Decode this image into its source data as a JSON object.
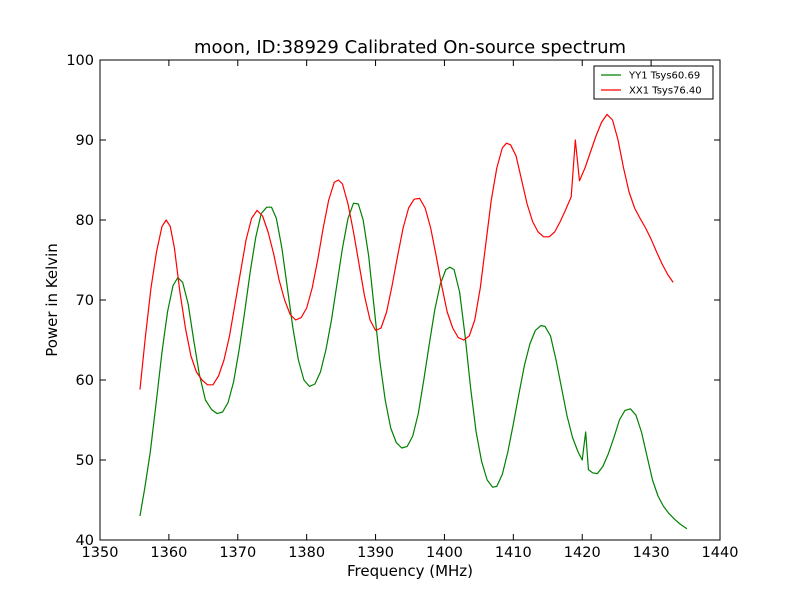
{
  "chart_data": {
    "type": "line",
    "title": "moon, ID:38929 Calibrated On-source spectrum",
    "xlabel": "Frequency (MHz)",
    "ylabel": "Power in Kelvin",
    "xlim": [
      1350,
      1440
    ],
    "ylim": [
      40,
      100
    ],
    "xticks": [
      1350,
      1360,
      1370,
      1380,
      1390,
      1400,
      1410,
      1420,
      1430,
      1440
    ],
    "yticks": [
      40,
      50,
      60,
      70,
      80,
      90,
      100
    ],
    "xtick_labels": [
      "1350",
      "1360",
      "1370",
      "1380",
      "1390",
      "1400",
      "1410",
      "1420",
      "1430",
      "1440"
    ],
    "ytick_labels": [
      "40",
      "50",
      "60",
      "70",
      "80",
      "90",
      "100"
    ],
    "grid": false,
    "legend_position": "top-right",
    "series": [
      {
        "name": "YY1 Tsys60.69",
        "color": "#008000",
        "points": [
          [
            1355.8,
            43.0
          ],
          [
            1356.5,
            46.5
          ],
          [
            1357.3,
            51.0
          ],
          [
            1358.2,
            57.5
          ],
          [
            1359.0,
            63.5
          ],
          [
            1359.8,
            68.5
          ],
          [
            1360.6,
            71.8
          ],
          [
            1361.3,
            72.8
          ],
          [
            1362.0,
            72.2
          ],
          [
            1362.8,
            69.5
          ],
          [
            1363.6,
            65.0
          ],
          [
            1364.4,
            60.8
          ],
          [
            1365.3,
            57.5
          ],
          [
            1366.2,
            56.3
          ],
          [
            1367.0,
            55.8
          ],
          [
            1367.8,
            56.0
          ],
          [
            1368.6,
            57.2
          ],
          [
            1369.4,
            59.8
          ],
          [
            1370.2,
            63.8
          ],
          [
            1371.0,
            68.5
          ],
          [
            1371.8,
            73.5
          ],
          [
            1372.6,
            77.8
          ],
          [
            1373.4,
            80.8
          ],
          [
            1374.2,
            81.6
          ],
          [
            1374.9,
            81.6
          ],
          [
            1375.6,
            80.2
          ],
          [
            1376.4,
            76.5
          ],
          [
            1377.2,
            71.5
          ],
          [
            1378.0,
            66.5
          ],
          [
            1378.8,
            62.5
          ],
          [
            1379.6,
            60.0
          ],
          [
            1380.4,
            59.2
          ],
          [
            1381.2,
            59.5
          ],
          [
            1382.0,
            61.0
          ],
          [
            1382.8,
            63.8
          ],
          [
            1383.6,
            67.5
          ],
          [
            1384.4,
            72.0
          ],
          [
            1385.2,
            76.5
          ],
          [
            1386.0,
            80.2
          ],
          [
            1386.8,
            82.1
          ],
          [
            1387.5,
            82.0
          ],
          [
            1388.2,
            80.0
          ],
          [
            1389.0,
            75.5
          ],
          [
            1389.8,
            69.0
          ],
          [
            1390.6,
            62.5
          ],
          [
            1391.4,
            57.5
          ],
          [
            1392.2,
            54.0
          ],
          [
            1393.0,
            52.2
          ],
          [
            1393.8,
            51.5
          ],
          [
            1394.6,
            51.7
          ],
          [
            1395.4,
            53.0
          ],
          [
            1396.2,
            55.8
          ],
          [
            1397.0,
            60.0
          ],
          [
            1397.8,
            64.5
          ],
          [
            1398.6,
            68.8
          ],
          [
            1399.4,
            72.0
          ],
          [
            1400.2,
            73.8
          ],
          [
            1400.8,
            74.1
          ],
          [
            1401.4,
            73.8
          ],
          [
            1402.2,
            71.0
          ],
          [
            1403.0,
            65.5
          ],
          [
            1403.8,
            59.0
          ],
          [
            1404.6,
            53.5
          ],
          [
            1405.4,
            49.8
          ],
          [
            1406.2,
            47.5
          ],
          [
            1407.0,
            46.6
          ],
          [
            1407.6,
            46.7
          ],
          [
            1408.4,
            48.2
          ],
          [
            1409.2,
            51.0
          ],
          [
            1410.0,
            54.5
          ],
          [
            1410.8,
            58.2
          ],
          [
            1411.6,
            61.8
          ],
          [
            1412.4,
            64.5
          ],
          [
            1413.2,
            66.2
          ],
          [
            1414.0,
            66.8
          ],
          [
            1414.6,
            66.7
          ],
          [
            1415.4,
            65.5
          ],
          [
            1416.2,
            62.5
          ],
          [
            1417.0,
            59.0
          ],
          [
            1417.8,
            55.5
          ],
          [
            1418.6,
            52.8
          ],
          [
            1419.4,
            51.0
          ],
          [
            1420.0,
            50.0
          ],
          [
            1420.5,
            53.5
          ],
          [
            1420.9,
            48.8
          ],
          [
            1421.5,
            48.4
          ],
          [
            1422.2,
            48.3
          ],
          [
            1423.0,
            49.2
          ],
          [
            1423.8,
            50.8
          ],
          [
            1424.6,
            52.8
          ],
          [
            1425.4,
            55.0
          ],
          [
            1426.2,
            56.2
          ],
          [
            1427.0,
            56.4
          ],
          [
            1427.8,
            55.6
          ],
          [
            1428.6,
            53.5
          ],
          [
            1429.4,
            50.5
          ],
          [
            1430.2,
            47.5
          ],
          [
            1431.0,
            45.5
          ],
          [
            1431.8,
            44.2
          ],
          [
            1432.6,
            43.3
          ],
          [
            1433.4,
            42.6
          ],
          [
            1434.2,
            42.0
          ],
          [
            1435.2,
            41.4
          ]
        ]
      },
      {
        "name": "XX1 Tsys76.40",
        "color": "#ff0000",
        "points": [
          [
            1355.8,
            58.8
          ],
          [
            1356.6,
            65.5
          ],
          [
            1357.4,
            71.5
          ],
          [
            1358.2,
            76.0
          ],
          [
            1359.0,
            79.2
          ],
          [
            1359.6,
            80.0
          ],
          [
            1360.2,
            79.2
          ],
          [
            1360.8,
            76.5
          ],
          [
            1361.6,
            71.0
          ],
          [
            1362.4,
            66.5
          ],
          [
            1363.2,
            63.0
          ],
          [
            1364.0,
            61.0
          ],
          [
            1364.8,
            60.0
          ],
          [
            1365.6,
            59.4
          ],
          [
            1366.4,
            59.4
          ],
          [
            1367.2,
            60.5
          ],
          [
            1368.0,
            62.5
          ],
          [
            1368.8,
            65.5
          ],
          [
            1369.6,
            69.5
          ],
          [
            1370.4,
            73.5
          ],
          [
            1371.2,
            77.5
          ],
          [
            1372.0,
            80.2
          ],
          [
            1372.8,
            81.2
          ],
          [
            1373.6,
            80.5
          ],
          [
            1374.4,
            78.5
          ],
          [
            1375.2,
            75.8
          ],
          [
            1376.0,
            72.5
          ],
          [
            1376.8,
            70.0
          ],
          [
            1377.6,
            68.2
          ],
          [
            1378.4,
            67.5
          ],
          [
            1379.2,
            67.8
          ],
          [
            1380.0,
            69.0
          ],
          [
            1380.8,
            71.5
          ],
          [
            1381.6,
            75.0
          ],
          [
            1382.4,
            79.0
          ],
          [
            1383.2,
            82.5
          ],
          [
            1384.0,
            84.7
          ],
          [
            1384.6,
            85.0
          ],
          [
            1385.2,
            84.5
          ],
          [
            1386.0,
            82.0
          ],
          [
            1386.8,
            78.5
          ],
          [
            1387.6,
            74.5
          ],
          [
            1388.4,
            70.5
          ],
          [
            1389.2,
            67.5
          ],
          [
            1390.0,
            66.2
          ],
          [
            1390.8,
            66.5
          ],
          [
            1391.6,
            68.5
          ],
          [
            1392.4,
            71.8
          ],
          [
            1393.2,
            75.5
          ],
          [
            1394.0,
            79.0
          ],
          [
            1394.8,
            81.5
          ],
          [
            1395.6,
            82.6
          ],
          [
            1396.4,
            82.7
          ],
          [
            1397.2,
            81.5
          ],
          [
            1398.0,
            79.0
          ],
          [
            1398.8,
            75.5
          ],
          [
            1399.6,
            71.8
          ],
          [
            1400.4,
            68.5
          ],
          [
            1401.2,
            66.5
          ],
          [
            1402.0,
            65.3
          ],
          [
            1402.8,
            65.0
          ],
          [
            1403.6,
            65.5
          ],
          [
            1404.4,
            67.5
          ],
          [
            1405.2,
            71.5
          ],
          [
            1406.0,
            77.0
          ],
          [
            1406.8,
            82.5
          ],
          [
            1407.6,
            86.5
          ],
          [
            1408.4,
            89.0
          ],
          [
            1409.0,
            89.6
          ],
          [
            1409.6,
            89.4
          ],
          [
            1410.4,
            88.0
          ],
          [
            1411.2,
            85.0
          ],
          [
            1412.0,
            82.0
          ],
          [
            1412.8,
            79.8
          ],
          [
            1413.6,
            78.5
          ],
          [
            1414.4,
            77.9
          ],
          [
            1415.2,
            77.9
          ],
          [
            1416.0,
            78.5
          ],
          [
            1416.8,
            79.8
          ],
          [
            1417.6,
            81.3
          ],
          [
            1418.4,
            82.9
          ],
          [
            1419.0,
            90.0
          ],
          [
            1419.6,
            84.9
          ],
          [
            1420.4,
            86.5
          ],
          [
            1421.2,
            88.5
          ],
          [
            1422.0,
            90.5
          ],
          [
            1422.8,
            92.2
          ],
          [
            1423.6,
            93.2
          ],
          [
            1424.4,
            92.5
          ],
          [
            1425.2,
            90.0
          ],
          [
            1426.0,
            86.5
          ],
          [
            1426.8,
            83.5
          ],
          [
            1427.6,
            81.5
          ],
          [
            1428.4,
            80.2
          ],
          [
            1429.2,
            79.0
          ],
          [
            1430.0,
            77.6
          ],
          [
            1430.8,
            76.0
          ],
          [
            1431.6,
            74.5
          ],
          [
            1432.4,
            73.2
          ],
          [
            1433.2,
            72.2
          ]
        ]
      }
    ]
  }
}
